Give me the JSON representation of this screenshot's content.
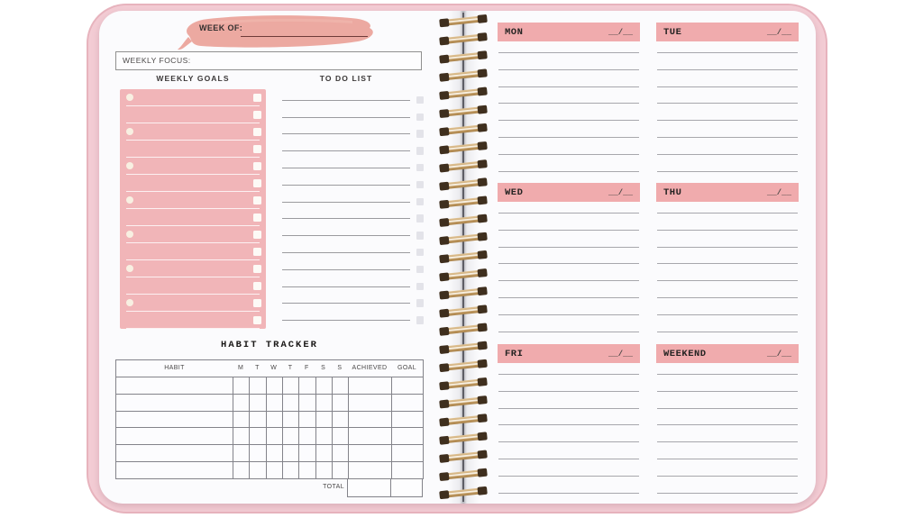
{
  "left_page": {
    "week_of_label": "WEEK OF:",
    "weekly_focus_label": "WEEKLY FOCUS:",
    "weekly_goals": {
      "title": "WEEKLY GOALS",
      "rows": 14,
      "numbered_rows": 7
    },
    "todo": {
      "title": "TO DO LIST",
      "rows": 14
    },
    "habit_tracker": {
      "title": "HABIT TRACKER",
      "columns": [
        "HABIT",
        "M",
        "T",
        "W",
        "T",
        "F",
        "S",
        "S",
        "ACHIEVED",
        "GOAL"
      ],
      "data_rows": 6,
      "total_label": "TOTAL"
    }
  },
  "right_page": {
    "lines_per_day": 8,
    "days": [
      {
        "label": "MON",
        "date_slot": "__/__"
      },
      {
        "label": "TUE",
        "date_slot": "__/__"
      },
      {
        "label": "WED",
        "date_slot": "__/__"
      },
      {
        "label": "THU",
        "date_slot": "__/__"
      },
      {
        "label": "FRI",
        "date_slot": "__/__"
      },
      {
        "label": "WEEKEND",
        "date_slot": "__/__"
      }
    ]
  },
  "binding": {
    "spiral_loops": 27
  },
  "colors": {
    "brush_stroke": "#ECA9A1",
    "goals_box_pink": "#F1B5B8",
    "day_header_pink": "#F0ABAD",
    "cover_pink": "#F3CCD4",
    "cover_edge_pink": "#E7B3BD",
    "ruled_line_gray": "#A7A7AC",
    "spiral_gold": "#C8A36E",
    "spiral_knot_brown": "#3F2F1E"
  }
}
